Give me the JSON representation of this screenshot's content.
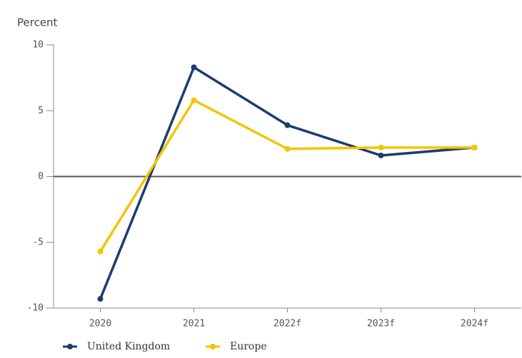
{
  "chart_data": {
    "type": "line",
    "y_label": "Percent",
    "categories": [
      "2020",
      "2021",
      "2022f",
      "2023f",
      "2024f"
    ],
    "series": [
      {
        "name": "United Kingdom",
        "color": "#1d3c6e",
        "values": [
          -9.3,
          8.3,
          3.9,
          1.6,
          2.2
        ]
      },
      {
        "name": "Europe",
        "color": "#f5c400",
        "values": [
          -5.7,
          5.8,
          2.1,
          2.2,
          2.2
        ]
      }
    ],
    "ylim": [
      -10,
      10
    ],
    "yticks": [
      -10,
      -5,
      0,
      5,
      10
    ],
    "legend": "bottom"
  }
}
